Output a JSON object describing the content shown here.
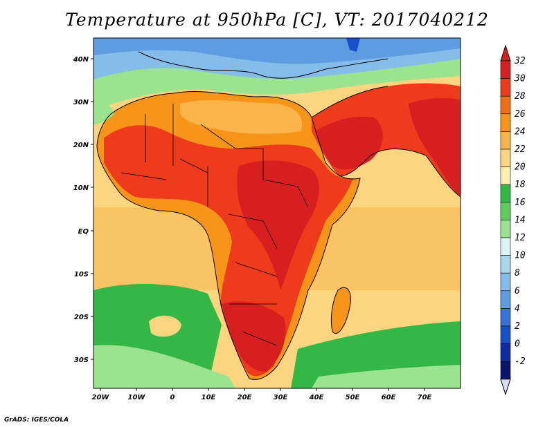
{
  "title": "Temperature at 950hPa [C], VT: 2017040212",
  "credit": "GrADS: IGES/COLA",
  "axes": {
    "lat_labels": [
      "40N",
      "30N",
      "20N",
      "10N",
      "EQ",
      "10S",
      "20S",
      "30S"
    ],
    "lon_labels": [
      "20W",
      "10W",
      "0",
      "10E",
      "20E",
      "30E",
      "40E",
      "50E",
      "60E",
      "70E"
    ]
  },
  "colorbar": {
    "levels": [
      "32",
      "30",
      "28",
      "26",
      "24",
      "22",
      "20",
      "18",
      "16",
      "14",
      "12",
      "10",
      "8",
      "6",
      "4",
      "2",
      "0",
      "-2"
    ],
    "colors": [
      "#d71f1f",
      "#ee3b1c",
      "#f46d12",
      "#f7941a",
      "#fab44a",
      "#fbd580",
      "#fdf0b0",
      "#33b846",
      "#5fcd5e",
      "#9be38f",
      "#dcf5f2",
      "#a8d8ee",
      "#84bde9",
      "#5e9be0",
      "#3a71d8",
      "#1a4fcc",
      "#0e2da3",
      "#0a1570"
    ],
    "top_color": "#d71f1f",
    "bottom_color": "#dcdcf5"
  },
  "map_colors": {
    "ocean": "#fbd580",
    "cool_ocean_south": "#33b846",
    "cold_ocean_south": "#9be38f",
    "mediterranean": "#84bde9",
    "europe": "#5e9be0",
    "hot": "#ee3b1c",
    "hottest": "#d71f1f",
    "warm": "#f7941a",
    "mild": "#fab44a"
  }
}
